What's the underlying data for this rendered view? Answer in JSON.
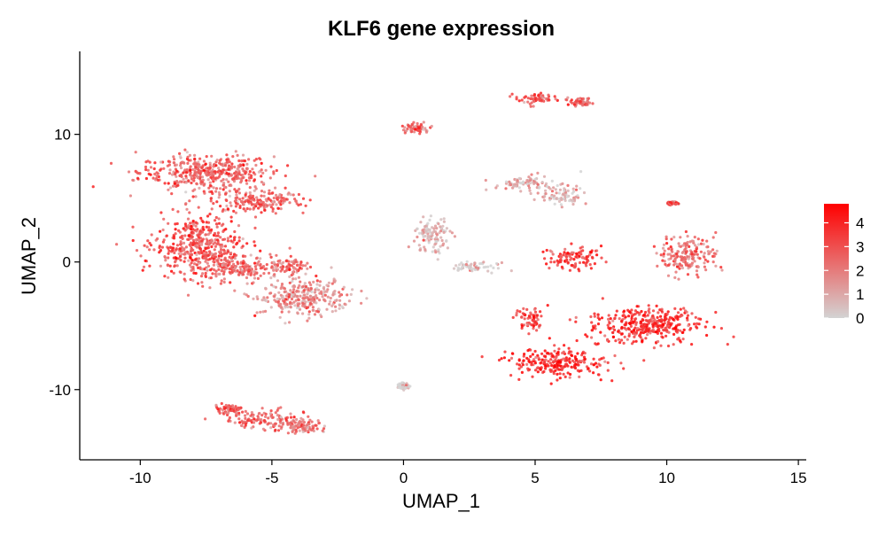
{
  "chart_data": {
    "type": "scatter",
    "title": "KLF6 gene expression",
    "xlabel": "UMAP_1",
    "ylabel": "UMAP_2",
    "xlim": [
      -12.3,
      15.3
    ],
    "ylim": [
      -15.5,
      16.5
    ],
    "xticks": [
      -10,
      -5,
      0,
      5,
      10,
      15
    ],
    "yticks": [
      -10,
      0,
      10
    ],
    "grid": false,
    "legend": {
      "placement": "right",
      "type": "colorbar",
      "range": [
        0,
        4.8
      ],
      "ticks": [
        0,
        1,
        2,
        3,
        4
      ],
      "low_color": "#d3d3d3",
      "high_color": "#ff0000"
    },
    "clusters": [
      {
        "center": [
          -7.5,
          7.0
        ],
        "spread": [
          2.3,
          1.3
        ],
        "expression": 2.7
      },
      {
        "center": [
          -5.6,
          4.8
        ],
        "spread": [
          1.6,
          0.8
        ],
        "expression": 2.6
      },
      {
        "center": [
          -7.8,
          1.2
        ],
        "spread": [
          1.5,
          2.2
        ],
        "expression": 3.1
      },
      {
        "center": [
          -6.5,
          -0.4
        ],
        "spread": [
          1.3,
          0.9
        ],
        "expression": 2.6
      },
      {
        "center": [
          -3.8,
          -2.8
        ],
        "spread": [
          1.6,
          1.3
        ],
        "expression": 1.7
      },
      {
        "center": [
          -4.5,
          -0.3
        ],
        "spread": [
          0.9,
          0.7
        ],
        "expression": 2.4
      },
      {
        "center": [
          -5.0,
          -12.4
        ],
        "spread": [
          1.5,
          0.7
        ],
        "expression": 2.7
      },
      {
        "center": [
          -6.6,
          -11.5
        ],
        "spread": [
          0.5,
          0.3
        ],
        "expression": 2.8
      },
      {
        "center": [
          -3.8,
          -13.0
        ],
        "spread": [
          0.6,
          0.4
        ],
        "expression": 2.1
      },
      {
        "center": [
          0.5,
          10.5
        ],
        "spread": [
          0.6,
          0.3
        ],
        "expression": 2.8
      },
      {
        "center": [
          1.1,
          2.0
        ],
        "spread": [
          0.6,
          1.3
        ],
        "expression": 0.7
      },
      {
        "center": [
          2.7,
          -0.4
        ],
        "spread": [
          0.8,
          0.3
        ],
        "expression": 0.3
      },
      {
        "center": [
          4.6,
          6.2
        ],
        "spread": [
          1.1,
          0.5
        ],
        "expression": 0.9
      },
      {
        "center": [
          6.0,
          5.2
        ],
        "spread": [
          0.7,
          0.8
        ],
        "expression": 0.8
      },
      {
        "center": [
          5.0,
          12.8
        ],
        "spread": [
          0.7,
          0.4
        ],
        "expression": 3.2
      },
      {
        "center": [
          6.7,
          12.5
        ],
        "spread": [
          0.4,
          0.3
        ],
        "expression": 2.5
      },
      {
        "center": [
          6.5,
          0.3
        ],
        "spread": [
          0.9,
          0.8
        ],
        "expression": 3.6
      },
      {
        "center": [
          10.8,
          0.6
        ],
        "spread": [
          1.0,
          1.3
        ],
        "expression": 2.5
      },
      {
        "center": [
          9.2,
          -4.9
        ],
        "spread": [
          2.0,
          1.3
        ],
        "expression": 3.8
      },
      {
        "center": [
          5.8,
          -7.9
        ],
        "spread": [
          1.7,
          1.0
        ],
        "expression": 3.9
      },
      {
        "center": [
          4.8,
          -4.5
        ],
        "spread": [
          0.5,
          0.9
        ],
        "expression": 3.4
      },
      {
        "center": [
          10.2,
          4.6
        ],
        "spread": [
          0.2,
          0.1
        ],
        "expression": 2.8
      },
      {
        "center": [
          0.0,
          -9.7
        ],
        "spread": [
          0.2,
          0.2
        ],
        "expression": 0.2
      }
    ]
  }
}
